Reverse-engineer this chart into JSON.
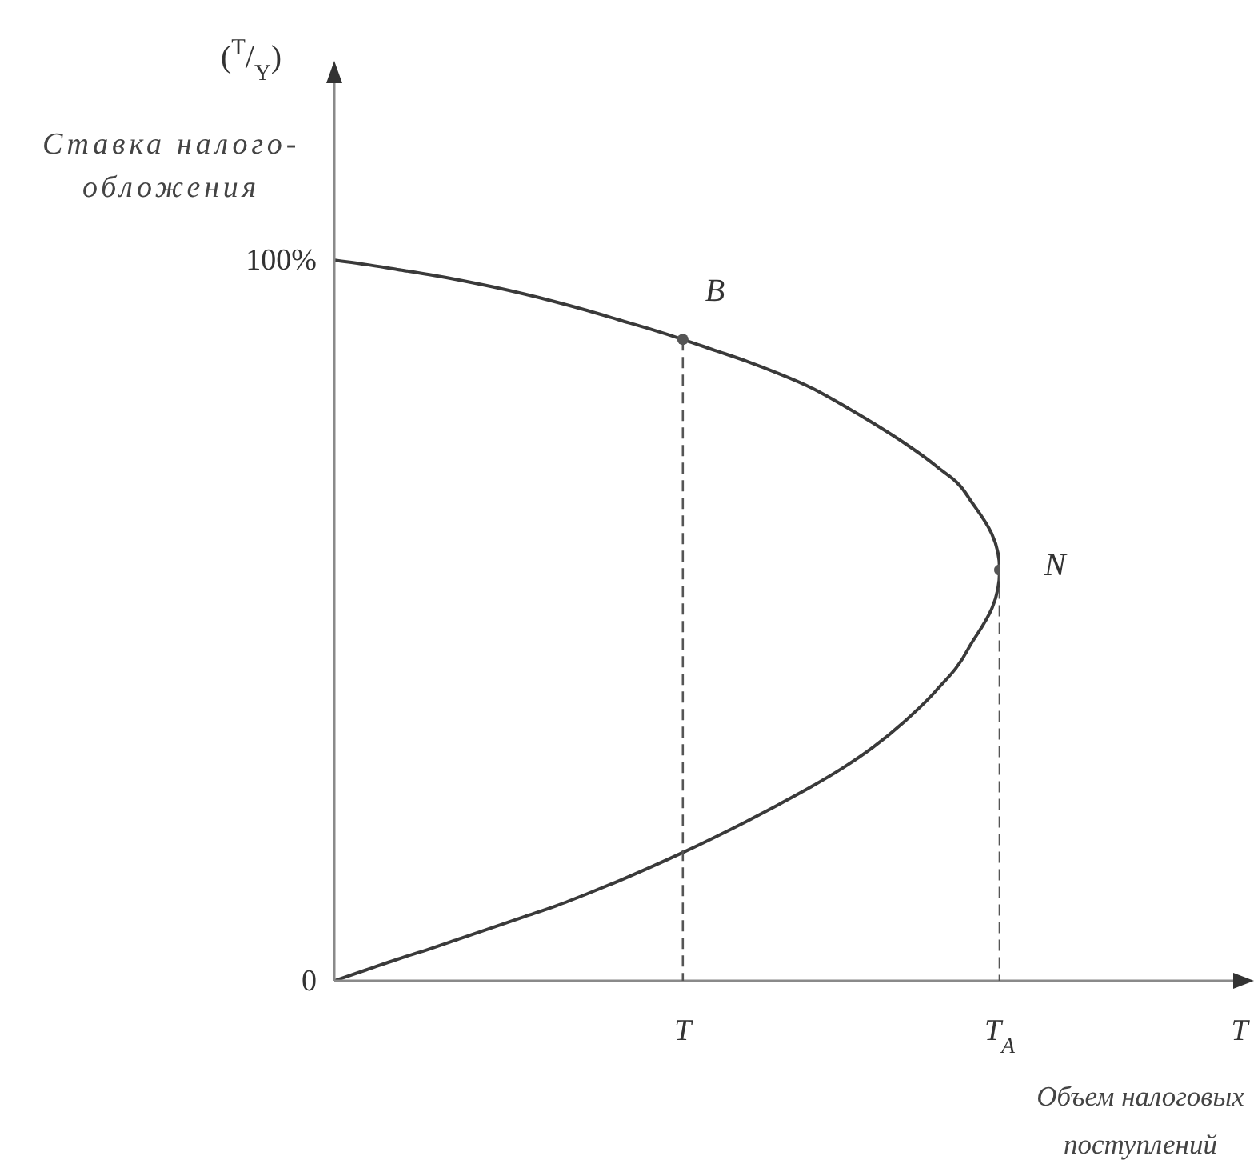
{
  "chart_data": {
    "type": "line",
    "ylabel": "($^{T}$/$_{Y}$)\nСтавка налого-\nобложения",
    "xlabel": "T\nОбъем налоговых\nпоступлений",
    "categories": [
      null,
      null,
      null,
      null,
      null,
      null,
      null,
      null,
      null,
      null,
      null,
      "T",
      null,
      null,
      null,
      null,
      null,
      null,
      null,
      null,
      null,
      "T$_{A}$"
    ],
    "ylim": [
      0,
      125
    ],
    "yticks": [
      0,
      {
        "value": 100,
        "label": "100%"
      }
    ],
    "marker": "none",
    "line_style": "solid",
    "series": [
      {
        "color": "#3a3a3a",
        "values": [
          100,
          99.4,
          98.7,
          98.0,
          97.2,
          96.3,
          95.3,
          94.2,
          93.0,
          91.7,
          90.4,
          89,
          87.5,
          86.0,
          84.3,
          82.4,
          80.0,
          77.4,
          74.6,
          71.4,
          67.2,
          57
        ]
      },
      {
        "color": "#3a3a3a",
        "values": [
          0,
          1.5,
          3.0,
          4.4,
          5.9,
          7.4,
          8.9,
          10.4,
          12.1,
          13.9,
          15.8,
          17.8,
          19.9,
          22.1,
          24.4,
          26.8,
          29.4,
          32.4,
          36.0,
          40.3,
          46.0,
          57
        ]
      },
      {
        "type": "lollipop",
        "line_style": "dashed",
        "marker": "circle",
        "color": "#555555",
        "values": [
          null,
          null,
          null,
          null,
          null,
          null,
          null,
          null,
          null,
          null,
          null,
          89,
          null,
          null,
          null,
          null,
          null,
          null,
          null,
          null,
          null,
          57
        ]
      }
    ],
    "annotations": [
      {
        "text": "B",
        "x": "T",
        "y": 89
      },
      {
        "text": "N",
        "x": "T$_{A}$",
        "y": 57
      }
    ]
  }
}
